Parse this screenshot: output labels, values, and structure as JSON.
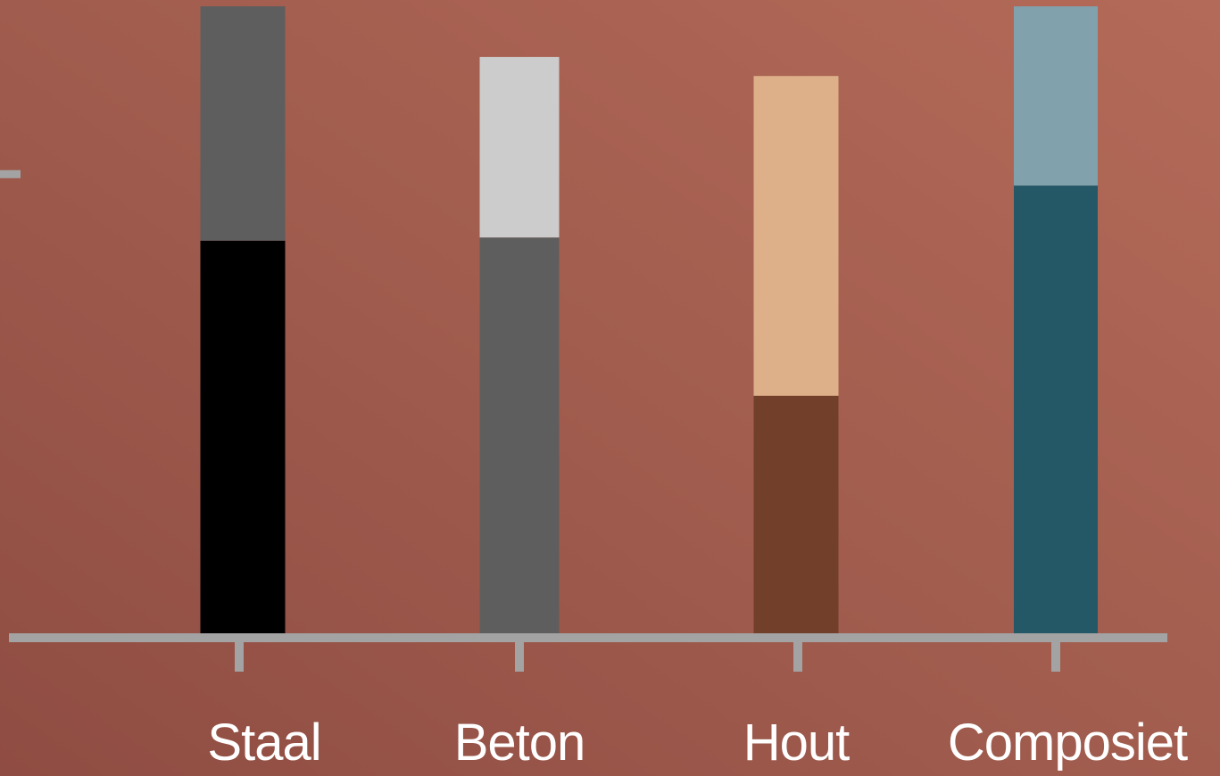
{
  "chart_data": {
    "type": "bar",
    "stacked": true,
    "categories": [
      "Staal",
      "Beton",
      "Hout",
      "Composiet"
    ],
    "series": [
      {
        "values": [
          62,
          62.5,
          37.5,
          70.7
        ],
        "colors": [
          "#000000",
          "#5e5e5e",
          "#713f2a",
          "#255866"
        ]
      },
      {
        "values": [
          37,
          28.5,
          50.5,
          28.3
        ],
        "colors": [
          "#5e5e5e",
          "#cccccc",
          "#ddb089",
          "#81a1ac"
        ]
      }
    ],
    "ylim": [
      0,
      100
    ],
    "yticks": [
      72.5
    ],
    "grid": false,
    "legend": "none",
    "axis_color": "#a3a3a3",
    "label_color": "#ffffff"
  }
}
